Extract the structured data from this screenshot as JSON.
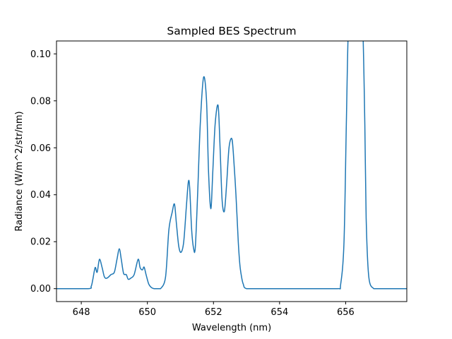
{
  "chart_data": {
    "type": "line",
    "title": "Sampled BES Spectrum",
    "xlabel": "Wavelength (nm)",
    "ylabel": "Radiance (W/m^2/str/nm)",
    "xlim": [
      647.25,
      657.85
    ],
    "ylim": [
      -0.0055,
      0.1055
    ],
    "xticks": [
      648,
      650,
      652,
      654,
      656
    ],
    "xtick_labels": [
      "648",
      "650",
      "652",
      "654",
      "656"
    ],
    "yticks": [
      0.0,
      0.02,
      0.04,
      0.06,
      0.08,
      0.1
    ],
    "ytick_labels": [
      "0.00",
      "0.02",
      "0.04",
      "0.06",
      "0.08",
      "0.10"
    ],
    "grid": false,
    "legend": "none",
    "series": [
      {
        "color": "#1f77b4",
        "x": [
          647.25,
          648.2,
          648.3,
          648.35,
          648.42,
          648.48,
          648.55,
          648.63,
          648.7,
          648.78,
          648.9,
          649.0,
          649.08,
          649.15,
          649.21,
          649.28,
          649.36,
          649.42,
          649.5,
          649.6,
          649.72,
          649.78,
          649.85,
          649.9,
          649.96,
          650.04,
          650.12,
          650.2,
          650.3,
          650.4,
          650.55,
          650.65,
          650.75,
          650.82,
          650.88,
          650.95,
          651.02,
          651.1,
          651.18,
          651.24,
          651.28,
          651.34,
          651.4,
          651.45,
          651.52,
          651.6,
          651.7,
          651.79,
          651.85,
          651.92,
          651.98,
          652.05,
          652.14,
          652.2,
          652.26,
          652.33,
          652.4,
          652.47,
          652.55,
          652.6,
          652.68,
          652.75,
          652.8,
          652.85,
          652.9,
          653.0,
          653.5,
          655.0,
          655.75,
          655.85,
          655.95,
          656.02,
          656.08,
          656.15,
          656.45,
          656.52,
          656.58,
          656.62,
          656.7,
          656.85,
          657.0,
          657.85
        ],
        "values": [
          0.0,
          0.0,
          0.001,
          0.004,
          0.009,
          0.007,
          0.0125,
          0.009,
          0.005,
          0.0045,
          0.006,
          0.007,
          0.0125,
          0.017,
          0.0125,
          0.0065,
          0.006,
          0.004,
          0.0045,
          0.006,
          0.0125,
          0.009,
          0.008,
          0.0092,
          0.006,
          0.002,
          0.0005,
          0.0,
          0.0,
          0.0,
          0.005,
          0.025,
          0.0325,
          0.036,
          0.0275,
          0.018,
          0.0155,
          0.02,
          0.035,
          0.0455,
          0.043,
          0.025,
          0.017,
          0.0175,
          0.04,
          0.07,
          0.09,
          0.08,
          0.05,
          0.034,
          0.05,
          0.07,
          0.078,
          0.06,
          0.038,
          0.033,
          0.045,
          0.06,
          0.064,
          0.058,
          0.04,
          0.02,
          0.01,
          0.005,
          0.002,
          0.0,
          0.0,
          0.0,
          0.0,
          0.002,
          0.02,
          0.07,
          0.11,
          0.11,
          0.11,
          0.11,
          0.07,
          0.03,
          0.005,
          0.0,
          0.0,
          0.0
        ]
      }
    ]
  }
}
